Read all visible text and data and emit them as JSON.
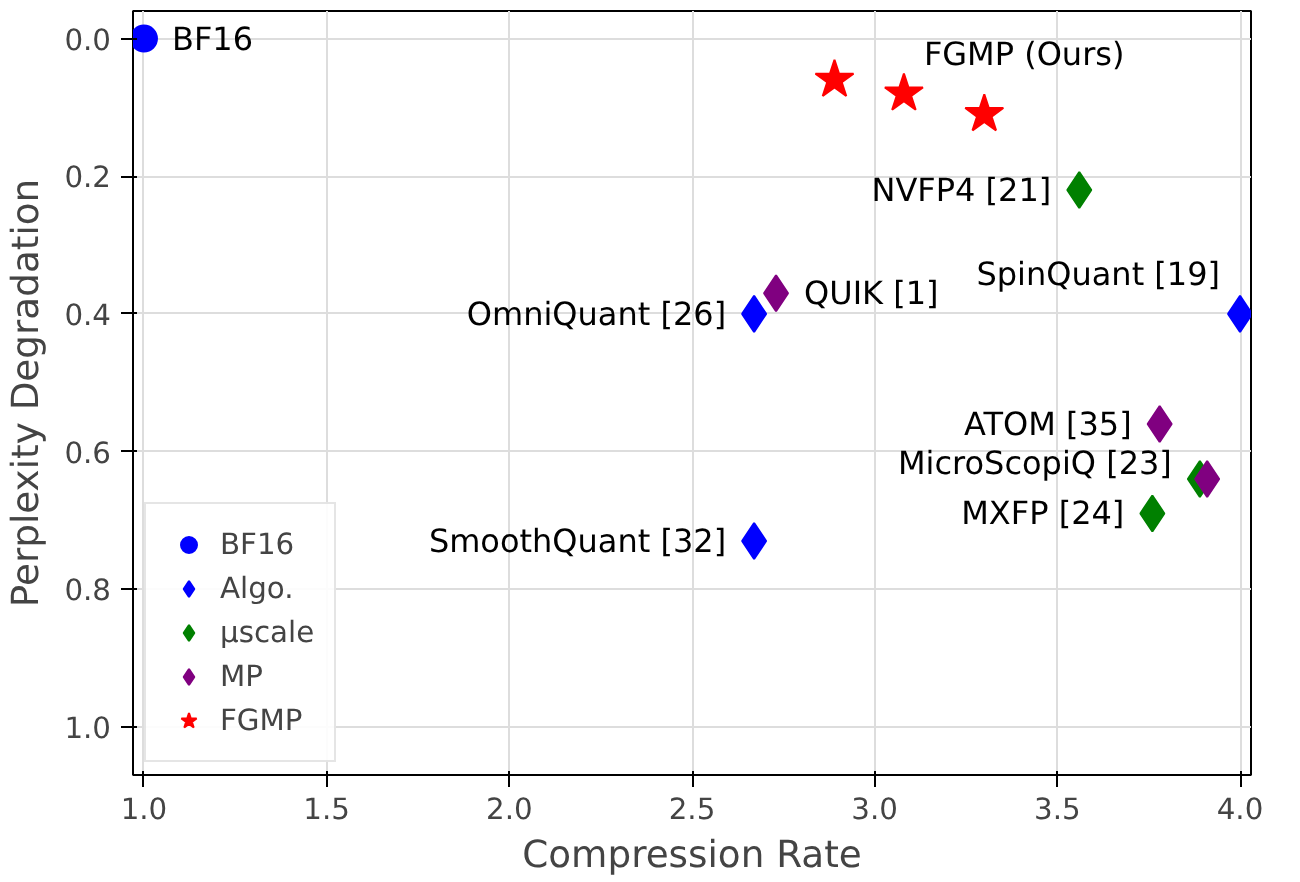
{
  "chart_data": {
    "type": "scatter",
    "xlabel": "Compression Rate",
    "ylabel": "Perplexity Degradation",
    "xlim": [
      0.97,
      4.03
    ],
    "ylim": [
      1.07,
      -0.04
    ],
    "xticks": [
      {
        "value": 1.0,
        "label": "1.0"
      },
      1.5,
      {
        "value": 2.0,
        "label": "2.0"
      },
      2.5,
      {
        "value": 3.0,
        "label": "3.0"
      },
      3.5,
      {
        "value": 4.0,
        "label": "4.0"
      }
    ],
    "yticks": [
      {
        "value": 0.0,
        "label": "0.0"
      },
      0.2,
      0.4,
      0.6,
      0.8,
      {
        "value": 1.0,
        "label": "1.0"
      }
    ],
    "grid": true,
    "legend": "bottom left",
    "series": [
      {
        "name": "BF16",
        "color": "#0000ff",
        "marker": "circle",
        "x": [
          1.0
        ],
        "values": [
          0.0
        ]
      },
      {
        "name": "Algo.",
        "color": "#0000ff",
        "marker": "diamond",
        "x": [
          2.67,
          2.67,
          4.0
        ],
        "values": [
          0.4,
          0.73,
          0.4
        ]
      },
      {
        "name": "µscale",
        "color": "#008000",
        "marker": "diamond",
        "x": [
          3.56,
          3.76,
          3.89
        ],
        "values": [
          0.22,
          0.69,
          0.64
        ]
      },
      {
        "name": "MP",
        "color": "#800080",
        "marker": "diamond",
        "x": [
          2.73,
          3.78,
          3.91
        ],
        "values": [
          0.37,
          0.56,
          0.64
        ]
      },
      {
        "name": "FGMP",
        "color": "#ff0000",
        "marker": "star",
        "x": [
          2.89,
          3.08,
          3.3
        ],
        "values": [
          0.06,
          0.08,
          0.11
        ]
      }
    ],
    "annotations": [
      {
        "text": "BF16",
        "x": 1.0,
        "y": 0.0
      },
      {
        "text": "FGMP (Ours)",
        "x": 3.08,
        "y": 0.08
      },
      {
        "text": "NVFP4 [21]",
        "x": 3.56,
        "y": 0.22
      },
      {
        "text": "QUIK [1]",
        "x": 2.73,
        "y": 0.37
      },
      {
        "text": "OmniQuant [26]",
        "x": 2.67,
        "y": 0.4
      },
      {
        "text": "SpinQuant [19]",
        "x": 4.0,
        "y": 0.4
      },
      {
        "text": "ATOM [35]",
        "x": 3.78,
        "y": 0.56
      },
      {
        "text": "MicroScopiQ [23]",
        "x": 3.89,
        "y": 0.64
      },
      {
        "text": "MXFP [24]",
        "x": 3.76,
        "y": 0.69
      },
      {
        "text": "SmoothQuant [32]",
        "x": 2.67,
        "y": 0.73
      }
    ]
  }
}
